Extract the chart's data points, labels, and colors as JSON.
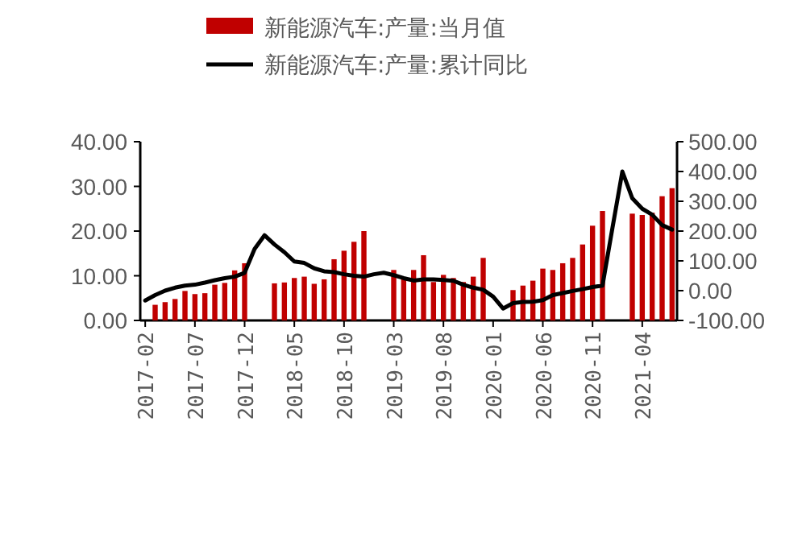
{
  "chart_data": {
    "type": "bar",
    "categories": [
      "2017-02",
      null,
      null,
      null,
      null,
      "2017-07",
      null,
      null,
      null,
      null,
      "2017-12",
      null,
      null,
      null,
      null,
      "2018-05",
      null,
      null,
      null,
      null,
      "2018-10",
      null,
      null,
      null,
      null,
      "2019-03",
      null,
      null,
      null,
      null,
      "2019-08",
      null,
      null,
      null,
      null,
      "2020-01",
      null,
      null,
      null,
      null,
      "2020-06",
      null,
      null,
      null,
      null,
      "2020-11",
      null,
      null,
      null,
      null,
      "2021-04",
      null,
      null,
      null
    ],
    "series": [
      {
        "name": "新能源汽车:产量:当月值",
        "color": "#c00000",
        "values": [
          null,
          3.5,
          4.1,
          4.8,
          6.6,
          5.9,
          6.1,
          8.0,
          8.4,
          11.2,
          12.8,
          null,
          null,
          8.3,
          8.5,
          9.5,
          9.8,
          8.2,
          9.2,
          13.7,
          15.6,
          17.6,
          20.0,
          null,
          null,
          11.3,
          9.2,
          11.3,
          14.6,
          8.6,
          10.2,
          9.5,
          8.6,
          9.8,
          14.0,
          null,
          null,
          6.8,
          7.8,
          8.9,
          11.6,
          11.3,
          12.8,
          14.0,
          17.0,
          21.2,
          24.5,
          null,
          null,
          23.9,
          23.6,
          24.1,
          27.8,
          29.6
        ]
      },
      {
        "name": "新能源汽车:产量:累计同比",
        "color": "#000000",
        "type": "line",
        "axis": "y2",
        "values": [
          -33,
          -15,
          0,
          10,
          17,
          20,
          27,
          35,
          42,
          47,
          60,
          140,
          186,
          155,
          129,
          98,
          93,
          75,
          65,
          62,
          55,
          50,
          47,
          55,
          60,
          52,
          42,
          34,
          38,
          38,
          36,
          33,
          20,
          10,
          3,
          -20,
          -60,
          -42,
          -38,
          -37,
          -32,
          -15,
          -8,
          -1,
          5,
          12,
          17,
          210,
          400,
          310,
          275,
          255,
          220,
          205
        ]
      }
    ],
    "ylim": [
      0,
      40
    ],
    "yticks": [
      {
        "value": 0,
        "label": "0.00"
      },
      {
        "value": 10,
        "label": "10.00"
      },
      {
        "value": 20,
        "label": "20.00"
      },
      {
        "value": 30,
        "label": "30.00"
      },
      {
        "value": 40,
        "label": "40.00"
      }
    ],
    "y2lim": [
      -100,
      500
    ],
    "y2ticks": [
      {
        "value": -100,
        "label": "-100.00"
      },
      {
        "value": 0,
        "label": "0.00"
      },
      {
        "value": 100,
        "label": "100.00"
      },
      {
        "value": 200,
        "label": "200.00"
      },
      {
        "value": 300,
        "label": "300.00"
      },
      {
        "value": 400,
        "label": "400.00"
      },
      {
        "value": 500,
        "label": "500.00"
      }
    ],
    "legend": "top"
  }
}
